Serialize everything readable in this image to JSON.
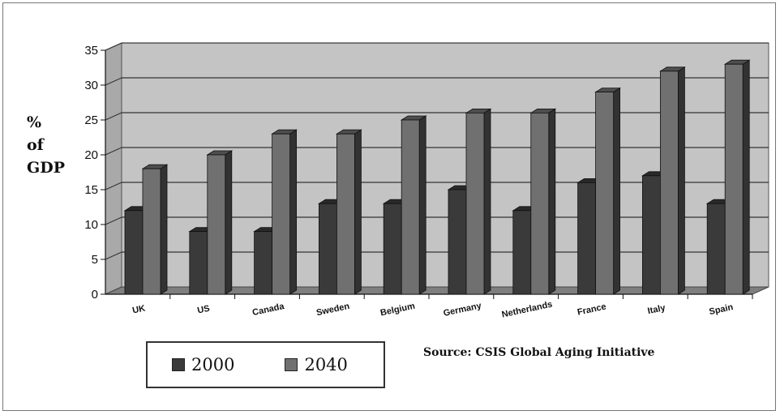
{
  "chart_data": {
    "type": "bar",
    "categories": [
      "UK",
      "US",
      "Canada",
      "Sweden",
      "Belgium",
      "Germany",
      "Netherlands",
      "France",
      "Italy",
      "Spain"
    ],
    "series": [
      {
        "name": "2000",
        "values": [
          12,
          9,
          9,
          13,
          13,
          15,
          12,
          16,
          17,
          13
        ],
        "color": "#3a3a3a"
      },
      {
        "name": "2040",
        "values": [
          18,
          20,
          23,
          23,
          25,
          26,
          26,
          29,
          32,
          33
        ],
        "color": "#707070"
      }
    ],
    "ylabel_lines": [
      "%",
      "of",
      "GDP"
    ],
    "ylim": [
      0,
      35
    ],
    "yticks": [
      0,
      5,
      10,
      15,
      20,
      25,
      30,
      35
    ],
    "grid": true,
    "legend_position": "bottom-left",
    "source": "Source: CSIS Global Aging Initiative",
    "colors": {
      "wall": "#c4c4c4",
      "floor": "#7f7f7f"
    }
  }
}
